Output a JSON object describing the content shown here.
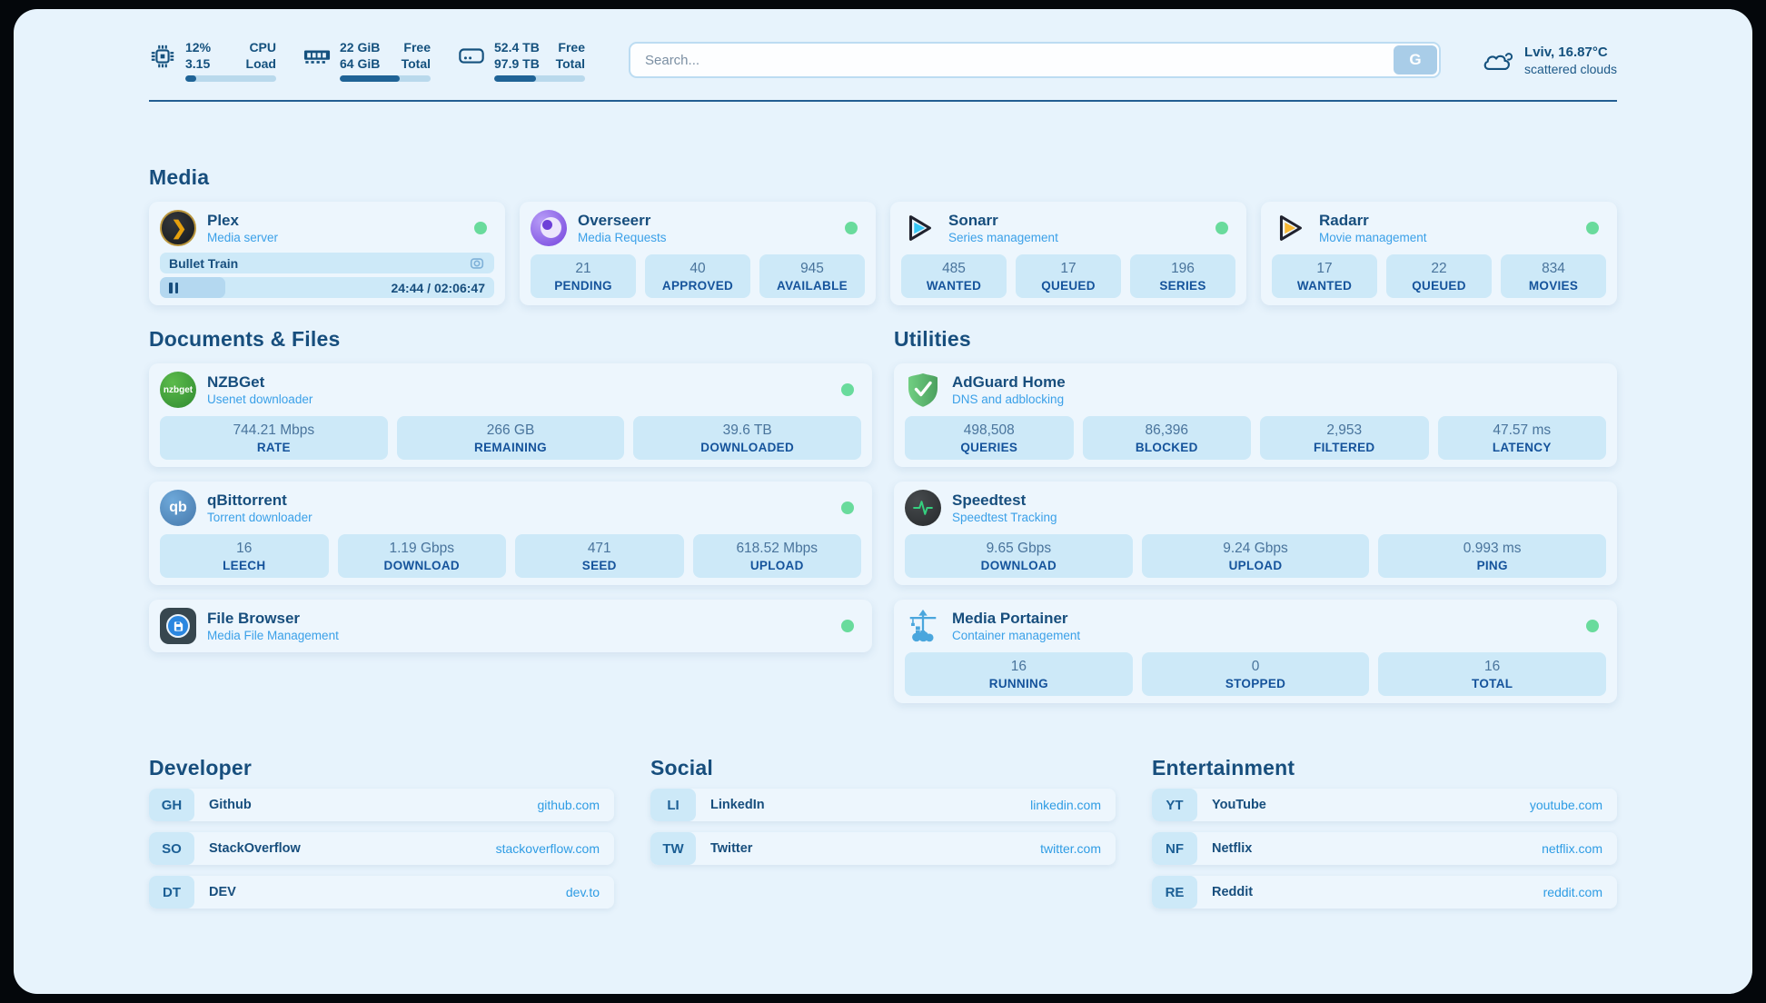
{
  "colors": {
    "page_bg": "#e7f3fc",
    "card_bg": "#edf6fd",
    "stat_bg": "#cde9f8",
    "navy_text": "#174e7d",
    "accent_blue": "#3aa0e8",
    "link_blue": "#2e9ce4",
    "status_green": "#69db9c",
    "progress_fill": "#1f6396"
  },
  "header": {
    "stats": [
      {
        "name": "cpu",
        "value_line1": "12%",
        "value_line2": "3.15",
        "label_line1": "CPU",
        "label_line2": "Load",
        "progress_percent": 12
      },
      {
        "name": "ram",
        "value_line1": "22 GiB",
        "value_line2": "64 GiB",
        "label_line1": "Free",
        "label_line2": "Total",
        "progress_percent": 66
      },
      {
        "name": "disk",
        "value_line1": "52.4 TB",
        "value_line2": "97.9 TB",
        "label_line1": "Free",
        "label_line2": "Total",
        "progress_percent": 46
      }
    ],
    "search": {
      "placeholder": "Search...",
      "button_label": "G"
    },
    "weather": {
      "location_temp": "Lviv, 16.87°C",
      "condition": "scattered clouds"
    }
  },
  "media": {
    "title": "Media",
    "plex": {
      "name": "Plex",
      "subtitle": "Media server",
      "online": true,
      "now_playing": "Bullet Train",
      "time_display": "24:44 / 02:06:47",
      "progress_percent": 19.5
    },
    "overseerr": {
      "name": "Overseerr",
      "subtitle": "Media Requests",
      "online": true,
      "stats": [
        {
          "value": "21",
          "label": "PENDING"
        },
        {
          "value": "40",
          "label": "APPROVED"
        },
        {
          "value": "945",
          "label": "AVAILABLE"
        }
      ]
    },
    "sonarr": {
      "name": "Sonarr",
      "subtitle": "Series management",
      "online": true,
      "stats": [
        {
          "value": "485",
          "label": "WANTED"
        },
        {
          "value": "17",
          "label": "QUEUED"
        },
        {
          "value": "196",
          "label": "SERIES"
        }
      ]
    },
    "radarr": {
      "name": "Radarr",
      "subtitle": "Movie management",
      "online": true,
      "stats": [
        {
          "value": "17",
          "label": "WANTED"
        },
        {
          "value": "22",
          "label": "QUEUED"
        },
        {
          "value": "834",
          "label": "MOVIES"
        }
      ]
    }
  },
  "documents_files": {
    "title": "Documents & Files",
    "nzbget": {
      "name": "NZBGet",
      "subtitle": "Usenet downloader",
      "online": true,
      "stats": [
        {
          "value": "744.21 Mbps",
          "label": "RATE"
        },
        {
          "value": "266 GB",
          "label": "REMAINING"
        },
        {
          "value": "39.6 TB",
          "label": "DOWNLOADED"
        }
      ]
    },
    "qbittorrent": {
      "name": "qBittorrent",
      "subtitle": "Torrent downloader",
      "online": true,
      "stats": [
        {
          "value": "16",
          "label": "LEECH"
        },
        {
          "value": "1.19 Gbps",
          "label": "DOWNLOAD"
        },
        {
          "value": "471",
          "label": "SEED"
        },
        {
          "value": "618.52 Mbps",
          "label": "UPLOAD"
        }
      ]
    },
    "filebrowser": {
      "name": "File Browser",
      "subtitle": "Media File Management",
      "online": true
    }
  },
  "utilities": {
    "title": "Utilities",
    "adguard": {
      "name": "AdGuard Home",
      "subtitle": "DNS and adblocking",
      "stats": [
        {
          "value": "498,508",
          "label": "QUERIES"
        },
        {
          "value": "86,396",
          "label": "BLOCKED"
        },
        {
          "value": "2,953",
          "label": "FILTERED"
        },
        {
          "value": "47.57 ms",
          "label": "LATENCY"
        }
      ]
    },
    "speedtest": {
      "name": "Speedtest",
      "subtitle": "Speedtest Tracking",
      "stats": [
        {
          "value": "9.65 Gbps",
          "label": "DOWNLOAD"
        },
        {
          "value": "9.24 Gbps",
          "label": "UPLOAD"
        },
        {
          "value": "0.993 ms",
          "label": "PING"
        }
      ]
    },
    "portainer": {
      "name": "Media Portainer",
      "subtitle": "Container management",
      "online": true,
      "stats": [
        {
          "value": "16",
          "label": "RUNNING"
        },
        {
          "value": "0",
          "label": "STOPPED"
        },
        {
          "value": "16",
          "label": "TOTAL"
        }
      ]
    }
  },
  "developer": {
    "title": "Developer",
    "links": [
      {
        "abbr": "GH",
        "name": "Github",
        "url": "github.com"
      },
      {
        "abbr": "SO",
        "name": "StackOverflow",
        "url": "stackoverflow.com"
      },
      {
        "abbr": "DT",
        "name": "DEV",
        "url": "dev.to"
      }
    ]
  },
  "social": {
    "title": "Social",
    "links": [
      {
        "abbr": "LI",
        "name": "LinkedIn",
        "url": "linkedin.com"
      },
      {
        "abbr": "TW",
        "name": "Twitter",
        "url": "twitter.com"
      }
    ]
  },
  "entertainment": {
    "title": "Entertainment",
    "links": [
      {
        "abbr": "YT",
        "name": "YouTube",
        "url": "youtube.com"
      },
      {
        "abbr": "NF",
        "name": "Netflix",
        "url": "netflix.com"
      },
      {
        "abbr": "RE",
        "name": "Reddit",
        "url": "reddit.com"
      }
    ]
  }
}
